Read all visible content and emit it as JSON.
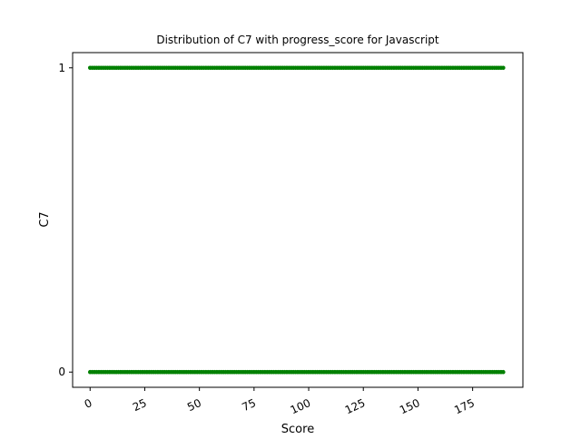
{
  "chart_data": {
    "type": "scatter",
    "title": "Distribution of C7 with progress_score for Javascript",
    "xlabel": "Score",
    "ylabel": "C7",
    "xlim": [
      -8,
      198
    ],
    "ylim": [
      -0.05,
      1.05
    ],
    "xticks": [
      0,
      25,
      50,
      75,
      100,
      125,
      150,
      175
    ],
    "xtick_labels": [
      "0",
      "25",
      "50",
      "75",
      "100",
      "125",
      "150",
      "175"
    ],
    "xtick_rotation_deg": 25,
    "yticks": [
      0,
      1
    ],
    "ytick_labels": [
      "0",
      "1"
    ],
    "grid": false,
    "legend": "none",
    "series": [
      {
        "color": "#008000",
        "marker": "point",
        "x_range": [
          0,
          189
        ],
        "x_step": 1,
        "y_values": [
          0,
          1
        ],
        "description": "Each integer score from 0 to 189 has points at both C7 = 0 and C7 = 1, forming two dense horizontal bands."
      }
    ]
  }
}
